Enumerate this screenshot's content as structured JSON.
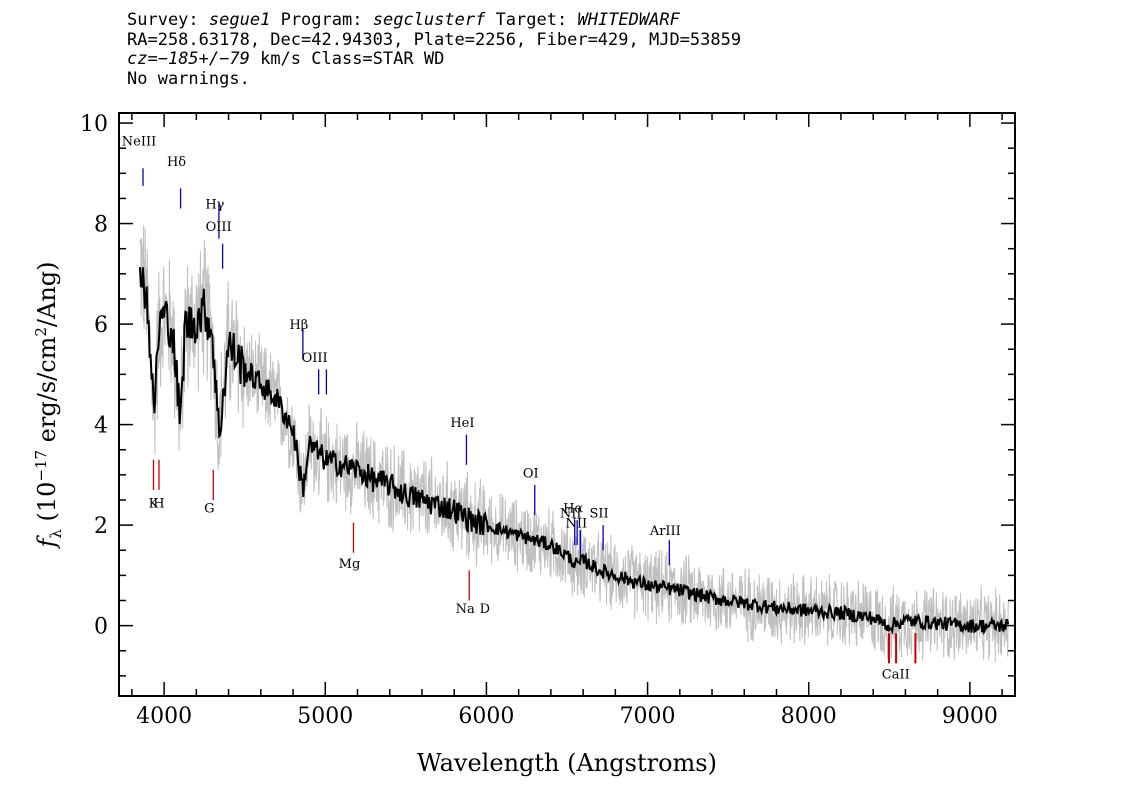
{
  "header": {
    "survey_label": "Survey:",
    "survey": "segue1",
    "program_label": "Program:",
    "program": "segclusterf",
    "target_label": "Target:",
    "target": "WHITEDWARF",
    "line2": "RA=258.63178, Dec=42.94303, Plate=2256, Fiber=429, MJD=53859",
    "cz_label": "cz=",
    "cz": "−185+/−79",
    "cz_rest": " km/s Class=STAR WD",
    "line4": "No warnings."
  },
  "chart_data": {
    "type": "line",
    "xlabel": "Wavelength (Angstroms)",
    "ylabel_parts": {
      "f": "f",
      "sub": "λ",
      "open": " (10",
      "exp": "−17",
      "mid": " erg/s/cm",
      "exp2": "2",
      "close": "/Ang)"
    },
    "xlim": [
      3720,
      9280
    ],
    "ylim": [
      -1.4,
      10.2
    ],
    "x_ticks": [
      4000,
      5000,
      6000,
      7000,
      8000,
      9000
    ],
    "y_ticks": [
      0,
      2,
      4,
      6,
      8,
      10
    ],
    "colors": {
      "flux": "#000000",
      "noise": "#bfbfbf",
      "emission": "#0000cc",
      "absorption": "#cc0000"
    },
    "flux_smoothed": {
      "x": [
        3850,
        3900,
        3935,
        3970,
        4000,
        4050,
        4102,
        4130,
        4180,
        4250,
        4300,
        4340,
        4400,
        4500,
        4600,
        4700,
        4800,
        4861,
        4900,
        5000,
        5100,
        5200,
        5300,
        5400,
        5500,
        5600,
        5700,
        5800,
        5900,
        6000,
        6100,
        6200,
        6300,
        6400,
        6500,
        6563,
        6600,
        6700,
        6800,
        6900,
        7000,
        7200,
        7400,
        7600,
        7800,
        8000,
        8200,
        8400,
        8500,
        8600,
        8800,
        9000,
        9200,
        9240
      ],
      "y": [
        7.3,
        6.3,
        4.2,
        6.0,
        6.2,
        5.9,
        4.0,
        6.0,
        6.0,
        6.3,
        5.8,
        3.8,
        5.6,
        5.1,
        4.8,
        4.5,
        3.9,
        2.7,
        3.6,
        3.3,
        3.2,
        3.1,
        2.9,
        2.8,
        2.6,
        2.5,
        2.4,
        2.3,
        2.1,
        2.0,
        1.9,
        1.8,
        1.7,
        1.6,
        1.4,
        1.2,
        1.3,
        1.1,
        1.0,
        0.9,
        0.8,
        0.7,
        0.55,
        0.45,
        0.35,
        0.3,
        0.25,
        0.15,
        0.0,
        0.1,
        0.05,
        0.0,
        0.0,
        0.0
      ]
    },
    "line_labels": [
      {
        "label": "NeIII",
        "wavelength": 3869,
        "kind": "emission",
        "y_label": 9.55,
        "y_top": 9.1,
        "y_bottom": 8.75
      },
      {
        "label": "Hδ",
        "wavelength": 4102,
        "kind": "emission",
        "y_label": 9.15,
        "y_top": 8.7,
        "y_bottom": 8.3
      },
      {
        "label": "Hγ",
        "wavelength": 4340,
        "kind": "emission",
        "y_label": 8.3,
        "y_top": 8.4,
        "y_bottom": 7.7
      },
      {
        "label": "OIII",
        "wavelength": 4363,
        "kind": "emission",
        "y_label": 7.85,
        "y_top": 7.6,
        "y_bottom": 7.1
      },
      {
        "label": "Hβ",
        "wavelength": 4861,
        "kind": "emission",
        "y_label": 5.9,
        "y_top": 5.9,
        "y_bottom": 5.3
      },
      {
        "label": "OIII",
        "wavelength": 4959,
        "kind": "emission",
        "y_label": 5.25,
        "y_top": 5.1,
        "y_bottom": 4.6
      },
      {
        "label": "",
        "wavelength": 5007,
        "kind": "emission",
        "y_label": 0,
        "y_top": 5.1,
        "y_bottom": 4.6
      },
      {
        "label": "HeI",
        "wavelength": 5876,
        "kind": "emission",
        "y_label": 3.95,
        "y_top": 3.8,
        "y_bottom": 3.2
      },
      {
        "label": "OI",
        "wavelength": 6300,
        "kind": "emission",
        "y_label": 2.95,
        "y_top": 2.8,
        "y_bottom": 2.2
      },
      {
        "label": "NII",
        "wavelength": 6548,
        "kind": "emission",
        "y_label": 2.15,
        "y_top": 2.1,
        "y_bottom": 1.6
      },
      {
        "label": "Hα",
        "wavelength": 6563,
        "kind": "emission",
        "y_label": 2.25,
        "y_top": 2.1,
        "y_bottom": 1.6
      },
      {
        "label": "NII",
        "wavelength": 6583,
        "kind": "emission",
        "y_label": 1.95,
        "y_top": 1.9,
        "y_bottom": 1.4
      },
      {
        "label": "SII",
        "wavelength": 6724,
        "kind": "emission",
        "y_label": 2.15,
        "y_top": 2.0,
        "y_bottom": 1.5
      },
      {
        "label": "ArIII",
        "wavelength": 7135,
        "kind": "emission",
        "y_label": 1.8,
        "y_top": 1.7,
        "y_bottom": 1.2
      },
      {
        "label": "",
        "wavelength": 3934,
        "kind": "absorption",
        "y_label": 0,
        "y_top": 3.3,
        "y_bottom": 2.7
      },
      {
        "label": "",
        "wavelength": 3968,
        "kind": "absorption",
        "y_label": 0,
        "y_top": 3.3,
        "y_bottom": 2.7
      },
      {
        "label": "G",
        "wavelength": 4305,
        "kind": "absorption",
        "y_label": 2.25,
        "y_top": 3.1,
        "y_bottom": 2.5
      },
      {
        "label": "Mg",
        "wavelength": 5175,
        "kind": "absorption",
        "y_label": 1.15,
        "y_top": 2.05,
        "y_bottom": 1.45
      },
      {
        "label": "Na",
        "wavelength": 5893,
        "kind": "absorption",
        "y_label": 0.25,
        "y_top": 1.1,
        "y_bottom": 0.5
      },
      {
        "label": "",
        "wavelength": 8498,
        "kind": "absorption",
        "y_label": 0,
        "y_top": -0.15,
        "y_bottom": -0.75
      },
      {
        "label": "",
        "wavelength": 8542,
        "kind": "absorption",
        "y_label": 0,
        "y_top": -0.15,
        "y_bottom": -0.75
      },
      {
        "label": "",
        "wavelength": 8662,
        "kind": "absorption",
        "y_label": 0,
        "y_top": -0.15,
        "y_bottom": -0.75
      }
    ],
    "extra_labels": [
      {
        "label": "K",
        "wavelength": 3934,
        "y": 2.35
      },
      {
        "label": "H",
        "wavelength": 3968,
        "y": 2.35
      },
      {
        "label": "D",
        "wavelength": 5990,
        "y": 0.25
      },
      {
        "label": "CaII",
        "wavelength": 8540,
        "y": -1.05
      }
    ]
  }
}
